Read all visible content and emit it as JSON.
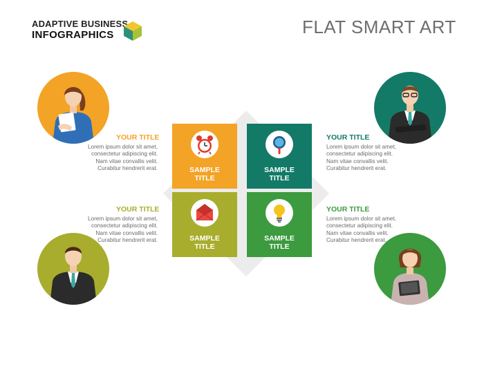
{
  "header": {
    "brand_line1": "ADAPTIVE BUSINESS",
    "brand_line2": "INFOGRAPHICS",
    "title": "FLAT SMART ART"
  },
  "tiles": [
    {
      "line1": "SAMPLE",
      "line2": "TITLE",
      "color": "#f3a325",
      "icon": "alarm-clock-icon"
    },
    {
      "line1": "SAMPLE",
      "line2": "TITLE",
      "color": "#137a67",
      "icon": "magnifier-icon"
    },
    {
      "line1": "SAMPLE",
      "line2": "TITLE",
      "color": "#a8ad2d",
      "icon": "envelope-icon"
    },
    {
      "line1": "SAMPLE",
      "line2": "TITLE",
      "color": "#3c9a3f",
      "icon": "lightbulb-icon"
    }
  ],
  "blocks": [
    {
      "title": "YOUR TITLE",
      "lines": [
        "Lorem ipsum dolor sit amet,",
        "consectetur adipiscing elit.",
        "Nam vitae convallis velit.",
        "Curabitur hendrerit erat."
      ],
      "color": "#f3a325"
    },
    {
      "title": "YOUR TITLE",
      "lines": [
        "Lorem ipsum dolor sit amet,",
        "consectetur adipiscing elit.",
        "Nam vitae convallis velit.",
        "Curabitur hendrerit erat."
      ],
      "color": "#137a67"
    },
    {
      "title": "YOUR TITLE",
      "lines": [
        "Lorem ipsum dolor sit amet,",
        "consectetur adipiscing elit.",
        "Nam vitae convallis velit.",
        "Curabitur hendrerit erat."
      ],
      "color": "#a8ad2d"
    },
    {
      "title": "YOUR TITLE",
      "lines": [
        "Lorem ipsum dolor sit amet,",
        "consectetur adipiscing elit.",
        "Nam vitae convallis velit.",
        "Curabitur hendrerit erat."
      ],
      "color": "#3c9a3f"
    }
  ],
  "avatars": [
    {
      "icon": "businesswoman-documents-icon",
      "color": "#f3a325"
    },
    {
      "icon": "businessman-glasses-icon",
      "color": "#137a67"
    },
    {
      "icon": "businessman-suit-icon",
      "color": "#a8ad2d"
    },
    {
      "icon": "businesswoman-tablet-icon",
      "color": "#3c9a3f"
    }
  ],
  "colors": {
    "brand_green": "#2f8f7a",
    "brand_yellow": "#f2c62f",
    "brand_lime": "#a8c236",
    "diamond": "#ececec"
  }
}
